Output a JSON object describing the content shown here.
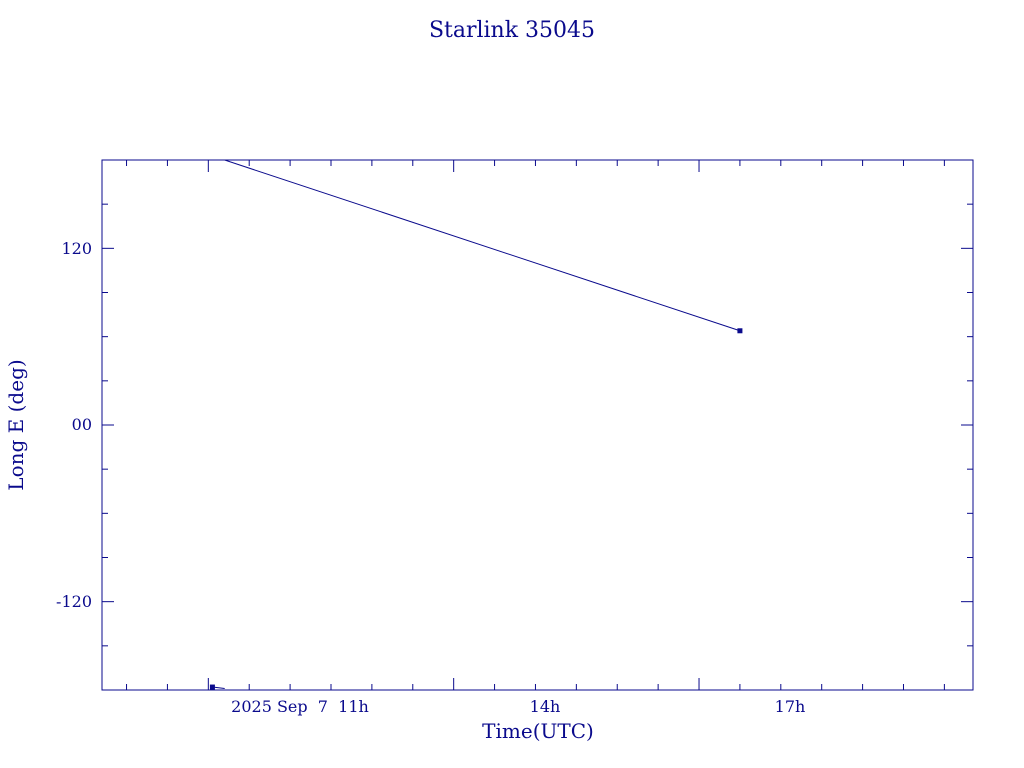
{
  "chart_data": {
    "type": "line",
    "title": "Starlink 35045",
    "xlabel": "Time(UTC)",
    "ylabel": "Long E (deg)",
    "x_tick_labels": [
      "2025 Sep  7  11h",
      "14h",
      "17h"
    ],
    "y_tick_labels": [
      "120",
      "00",
      "-120"
    ],
    "x_unit": "hours UTC (2025 Sep 7)",
    "xlim": [
      9.7,
      20.35
    ],
    "ylim": [
      -180,
      180
    ],
    "x_major_ticks": [
      11,
      14,
      17
    ],
    "x_minor_step": 0.5,
    "y_major_ticks": [
      120,
      0,
      -120
    ],
    "y_minor_step": 30,
    "grid": false,
    "color": "#0a0a8c",
    "series": [
      {
        "segments": [
          {
            "x": [
              11.05,
              11.2
            ],
            "y": [
              -178,
              -179
            ]
          },
          {
            "x": [
              11.2,
              17.5
            ],
            "y": [
              180,
              64
            ]
          }
        ],
        "markers": [
          {
            "x": 11.05,
            "y": -178
          },
          {
            "x": 17.5,
            "y": 64
          }
        ]
      }
    ]
  }
}
